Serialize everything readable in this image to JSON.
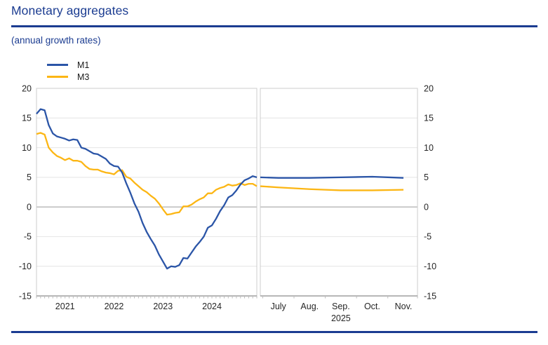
{
  "header": {
    "title": "Monetary aggregates",
    "subtitle": "(annual growth rates)"
  },
  "colors": {
    "accent_blue": "#1b3c91",
    "m1": "#2b55a7",
    "m3": "#fcb614",
    "grid": "#e4e4e4",
    "zero_line": "#9a9a9a",
    "axis_line": "#8c8c8c",
    "panel_border": "#cccccc",
    "tick": "#bbbbbb",
    "text": "#262626"
  },
  "legend": [
    {
      "name": "M1"
    },
    {
      "name": "M3"
    }
  ],
  "chart_data": {
    "type": "line",
    "title": "Monetary aggregates",
    "subtitle": "(annual growth rates)",
    "ylabel": "annual growth rate (%)",
    "ylim": [
      -15,
      20
    ],
    "yticks": [
      20,
      15,
      10,
      5,
      0,
      -5,
      -10,
      -15
    ],
    "grid": "horizontal",
    "legend_position": "top-left",
    "legend_entries": [
      "M1",
      "M3"
    ],
    "panels": [
      {
        "id": "history",
        "freq": "monthly",
        "x_start": "2020-12",
        "x_end": "2025-06",
        "x_tick_labels": [
          "2021",
          "2022",
          "2023",
          "2024"
        ],
        "series": [
          {
            "name": "M1",
            "values": [
              15.7,
              16.5,
              16.3,
              13.8,
              12.4,
              11.9,
              11.7,
              11.5,
              11.2,
              11.4,
              11.3,
              10.0,
              9.8,
              9.4,
              9.0,
              8.9,
              8.5,
              8.1,
              7.3,
              6.9,
              6.8,
              5.8,
              4.0,
              2.4,
              0.6,
              -0.8,
              -2.7,
              -4.2,
              -5.4,
              -6.5,
              -8.0,
              -9.2,
              -10.4,
              -10.0,
              -10.1,
              -9.8,
              -8.6,
              -8.7,
              -7.7,
              -6.7,
              -5.9,
              -5.0,
              -3.5,
              -3.1,
              -2.0,
              -0.7,
              0.3,
              1.6,
              2.0,
              2.8,
              3.8,
              4.5,
              4.8,
              5.2,
              5.0
            ]
          },
          {
            "name": "M3",
            "values": [
              12.3,
              12.5,
              12.2,
              10.0,
              9.2,
              8.6,
              8.3,
              7.9,
              8.2,
              7.8,
              7.8,
              7.6,
              6.9,
              6.4,
              6.3,
              6.3,
              6.0,
              5.8,
              5.7,
              5.5,
              6.1,
              6.2,
              5.1,
              4.8,
              4.1,
              3.5,
              2.9,
              2.5,
              1.9,
              1.4,
              0.6,
              -0.4,
              -1.3,
              -1.2,
              -1.0,
              -0.9,
              0.1,
              0.1,
              0.4,
              0.9,
              1.3,
              1.6,
              2.3,
              2.3,
              2.9,
              3.2,
              3.4,
              3.8,
              3.6,
              3.7,
              4.0,
              3.7,
              3.9,
              3.9,
              3.5
            ]
          }
        ]
      },
      {
        "id": "recent",
        "freq": "monthly",
        "x_tick_labels": [
          "July",
          "Aug.",
          "Sep.",
          "Oct.",
          "Nov."
        ],
        "x_sub_label": "2025",
        "series": [
          {
            "name": "M1",
            "values": [
              4.9,
              4.9,
              5.0,
              5.1,
              4.9
            ]
          },
          {
            "name": "M3",
            "values": [
              3.3,
              3.0,
              2.8,
              2.8,
              2.9
            ]
          }
        ]
      }
    ]
  }
}
